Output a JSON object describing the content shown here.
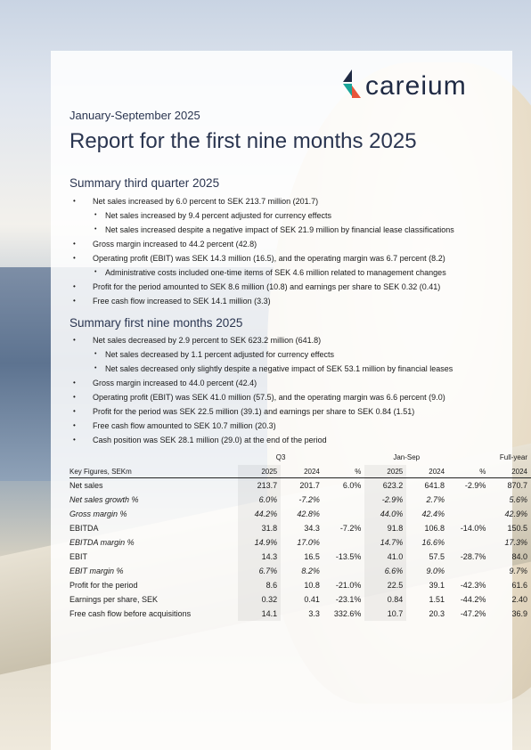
{
  "brand": {
    "name": "careium"
  },
  "period": "January-September 2025",
  "title": "Report for the first nine months 2025",
  "q3": {
    "heading": "Summary third quarter 2025",
    "bullets": [
      {
        "level": 1,
        "text": "Net sales increased by 6.0 percent to SEK 213.7 million (201.7)"
      },
      {
        "level": 2,
        "text": "Net sales increased by 9.4 percent adjusted for currency effects"
      },
      {
        "level": 2,
        "text": "Net sales increased despite a negative impact of SEK 21.9 million by financial lease classifications"
      },
      {
        "level": 1,
        "text": "Gross margin increased to 44.2 percent (42.8)"
      },
      {
        "level": 1,
        "text": "Operating profit (EBIT) was SEK 14.3 million (16.5), and the operating margin was 6.7 percent (8.2)"
      },
      {
        "level": 2,
        "text": "Administrative costs included one-time items of SEK 4.6 million related to management changes"
      },
      {
        "level": 1,
        "text": "Profit for the period amounted to SEK 8.6 million (10.8) and earnings per share to SEK 0.32 (0.41)"
      },
      {
        "level": 1,
        "text": "Free cash flow increased to SEK 14.1 million (3.3)"
      }
    ]
  },
  "nine": {
    "heading": "Summary first nine months 2025",
    "bullets": [
      {
        "level": 1,
        "text": "Net sales decreased by 2.9 percent to SEK 623.2 million (641.8)"
      },
      {
        "level": 2,
        "text": "Net sales decreased by 1.1 percent adjusted for currency effects"
      },
      {
        "level": 2,
        "text": "Net sales decreased only slightly despite a negative impact of SEK 53.1 million by financial leases"
      },
      {
        "level": 1,
        "text": "Gross margin increased to 44.0 percent (42.4)"
      },
      {
        "level": 1,
        "text": "Operating profit (EBIT) was SEK 41.0 million (57.5), and the operating margin was 6.6 percent (9.0)"
      },
      {
        "level": 1,
        "text": "Profit for the period was SEK 22.5 million (39.1) and earnings per share to SEK 0.84 (1.51)"
      },
      {
        "level": 1,
        "text": "Free cash flow amounted to SEK 10.7 million (20.3)"
      },
      {
        "level": 1,
        "text": "Cash position was SEK 28.1 million (29.0) at the end of the period"
      }
    ]
  },
  "table": {
    "groups": {
      "q3": "Q3",
      "jansep": "Jan-Sep",
      "full": "Full-year"
    },
    "columns": [
      "Key Figures, SEKm",
      "2025",
      "2024",
      "%",
      "2025",
      "2024",
      "%",
      "2024"
    ],
    "rows": [
      {
        "italic": false,
        "cells": [
          "Net sales",
          "213.7",
          "201.7",
          "6.0%",
          "623.2",
          "641.8",
          "-2.9%",
          "870.7"
        ]
      },
      {
        "italic": true,
        "cells": [
          "Net sales growth %",
          "6.0%",
          "-7.2%",
          "",
          "-2.9%",
          "2.7%",
          "",
          "5.6%"
        ]
      },
      {
        "italic": true,
        "cells": [
          "Gross margin %",
          "44.2%",
          "42.8%",
          "",
          "44.0%",
          "42.4%",
          "",
          "42.9%"
        ]
      },
      {
        "italic": false,
        "cells": [
          "EBITDA",
          "31.8",
          "34.3",
          "-7.2%",
          "91.8",
          "106.8",
          "-14.0%",
          "150.5"
        ]
      },
      {
        "italic": true,
        "cells": [
          "EBITDA margin %",
          "14.9%",
          "17.0%",
          "",
          "14.7%",
          "16.6%",
          "",
          "17.3%"
        ]
      },
      {
        "italic": false,
        "cells": [
          "EBIT",
          "14.3",
          "16.5",
          "-13.5%",
          "41.0",
          "57.5",
          "-28.7%",
          "84.0"
        ]
      },
      {
        "italic": true,
        "cells": [
          "EBIT margin %",
          "6.7%",
          "8.2%",
          "",
          "6.6%",
          "9.0%",
          "",
          "9.7%"
        ]
      },
      {
        "italic": false,
        "cells": [
          "Profit for the period",
          "8.6",
          "10.8",
          "-21.0%",
          "22.5",
          "39.1",
          "-42.3%",
          "61.6"
        ]
      },
      {
        "italic": false,
        "cells": [
          "Earnings per share, SEK",
          "0.32",
          "0.41",
          "-23.1%",
          "0.84",
          "1.51",
          "-44.2%",
          "2.40"
        ]
      },
      {
        "italic": false,
        "cells": [
          "Free cash flow before acquisitions",
          "14.1",
          "3.3",
          "332.6%",
          "10.7",
          "20.3",
          "-47.2%",
          "36.9"
        ]
      }
    ]
  }
}
